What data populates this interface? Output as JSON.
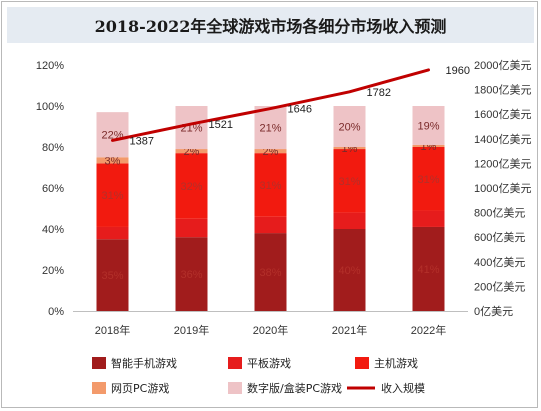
{
  "title": "2018-2022年全球游戏市场各细分市场收入预测",
  "chart_data": {
    "type": "bar",
    "stacked": true,
    "categories": [
      "2018年",
      "2019年",
      "2020年",
      "2021年",
      "2022年"
    ],
    "series": [
      {
        "name": "智能手机游戏",
        "values": [
          35,
          36,
          38,
          40,
          41
        ],
        "labels": [
          "35%",
          "36%",
          "38%",
          "40%",
          "41%"
        ],
        "color": "#a11c1c"
      },
      {
        "name": "平板游戏",
        "values": [
          6,
          9,
          8,
          8,
          8
        ],
        "labels": [
          "",
          "",
          "",
          "",
          ""
        ],
        "color": "#e61c1c"
      },
      {
        "name": "主机游戏",
        "values": [
          31,
          32,
          31,
          31,
          31
        ],
        "labels": [
          "31%",
          "32%",
          "31%",
          "31%",
          "31%"
        ],
        "color": "#f21a0f"
      },
      {
        "name": "网页PC游戏",
        "values": [
          3,
          2,
          2,
          1,
          1
        ],
        "labels": [
          "3%",
          "2%",
          "2%",
          "1%",
          "1%"
        ],
        "color": "#f39a6b"
      },
      {
        "name": "数字版/盒装PC游戏",
        "values": [
          22,
          21,
          21,
          20,
          19
        ],
        "labels": [
          "22%",
          "21%",
          "21%",
          "20%",
          "19%"
        ],
        "color": "#eec3c6"
      }
    ],
    "line": {
      "name": "收入规模",
      "values": [
        1387,
        1521,
        1646,
        1782,
        1960
      ],
      "labels": [
        "1387",
        "1521",
        "1646",
        "1782",
        "1960"
      ],
      "color": "#c00000"
    },
    "y_left": {
      "min": 0,
      "max": 120,
      "step": 20,
      "ticks": [
        "0%",
        "20%",
        "40%",
        "60%",
        "80%",
        "100%",
        "120%"
      ]
    },
    "y_right": {
      "min": 0,
      "max": 2000,
      "step": 200,
      "ticks": [
        "0亿美元",
        "200亿美元",
        "400亿美元",
        "600亿美元",
        "800亿美元",
        "1000亿美元",
        "1200亿美元",
        "1400亿美元",
        "1600亿美元",
        "1800亿美元",
        "2000亿美元"
      ]
    },
    "grid": false,
    "legend_position": "bottom"
  }
}
